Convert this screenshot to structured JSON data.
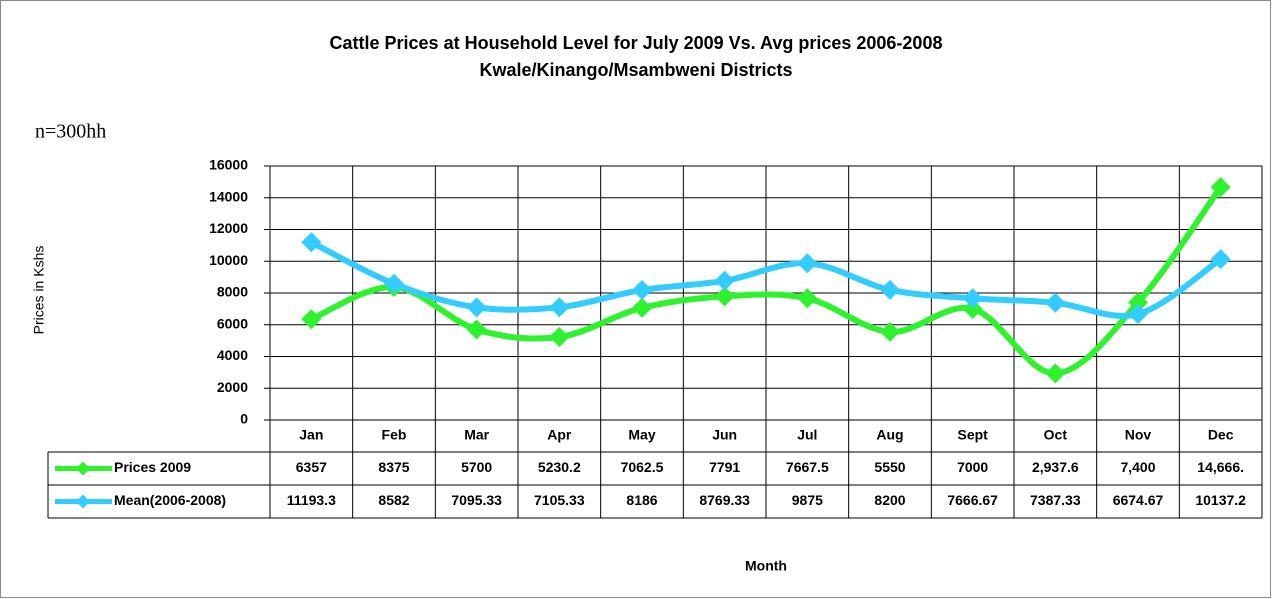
{
  "chart_data": {
    "type": "line",
    "title": "Cattle Prices at Household Level for July 2009 Vs. Avg prices 2006-2008",
    "subtitle": "Kwale/Kinango/Msambweni Districts",
    "annotation": "n=300hh",
    "ylabel": "Prices in Kshs",
    "xlabel": "Month",
    "categories": [
      "Jan",
      "Feb",
      "Mar",
      "Apr",
      "May",
      "Jun",
      "Jul",
      "Aug",
      "Sept",
      "Oct",
      "Nov",
      "Dec"
    ],
    "series": [
      {
        "name": "Prices 2009",
        "color": "#2ef22e",
        "values": [
          6357,
          8375,
          5700,
          5230.2,
          7062.5,
          7791,
          7667.5,
          5550,
          7000,
          2937.6,
          7400,
          14666
        ],
        "value_labels": [
          "6357",
          "8375",
          "5700",
          "5230.2",
          "7062.5",
          "7791",
          "7667.5",
          "5550",
          "7000",
          "2,937.6",
          "7,400",
          "14,666."
        ]
      },
      {
        "name": "Mean(2006-2008)",
        "color": "#33ccff",
        "values": [
          11193.3,
          8582,
          7095.33,
          7105.33,
          8186,
          8769.33,
          9875,
          8200,
          7666.67,
          7387.33,
          6674.67,
          10137.2
        ]
      }
    ],
    "ylim": [
      0,
      16000
    ],
    "yticks": [
      0,
      2000,
      4000,
      6000,
      8000,
      10000,
      12000,
      14000,
      16000
    ],
    "grid": true
  }
}
